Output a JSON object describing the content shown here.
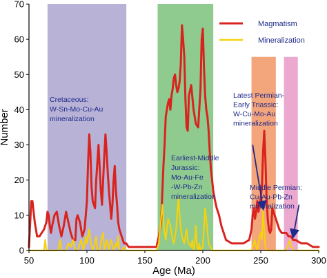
{
  "chart_data": {
    "type": "line",
    "xlabel": "Age (Ma)",
    "ylabel": "Number",
    "xlim": [
      50,
      300
    ],
    "ylim": [
      0,
      70
    ],
    "xticks": [
      50,
      100,
      150,
      200,
      250,
      300
    ],
    "yticks": [
      0,
      10,
      20,
      30,
      40,
      50,
      60,
      70
    ],
    "grid": false,
    "legend_position": "top-right",
    "colors": {
      "magmatism": "#d9231f",
      "mineralization": "#f5d20c",
      "band_cretaceous": "#b8b3d6",
      "band_jurassic": "#8fcb8f",
      "band_permian_triassic": "#f3a57b",
      "band_middle_permian": "#eba9cf",
      "annotation_text": "#1f2a8a"
    },
    "bands": [
      {
        "x": [
          66,
          134
        ],
        "color_key": "band_cretaceous",
        "y_top": 70,
        "label": [
          "Cretaceous:",
          "W-Sn-Mo-Cu-Au",
          "mineralization"
        ]
      },
      {
        "x": [
          161,
          209
        ],
        "color_key": "band_jurassic",
        "y_top": 70,
        "label": [
          "Earliest-Middle",
          "Jurassic:",
          "Mo-Au-Fe",
          "-W-Pb-Zn",
          "mineralization"
        ]
      },
      {
        "x": [
          242,
          263
        ],
        "color_key": "band_permian_triassic",
        "y_top": 55,
        "label": [
          "Latest Permian-",
          "Early Triassic:",
          "W-Cu-Mo-Au",
          "mineralization"
        ]
      },
      {
        "x": [
          270,
          282
        ],
        "color_key": "band_middle_permian",
        "y_top": 55,
        "label": [
          "Middle Permian:",
          "Cu-Au-Pb-Zn",
          "mineralization"
        ]
      }
    ],
    "arrows": [
      {
        "from": [
          243,
          30
        ],
        "to": [
          252,
          12
        ]
      },
      {
        "from": [
          283,
          13
        ],
        "to": [
          278,
          4
        ]
      }
    ],
    "series": [
      {
        "name": "Magmatism",
        "color_key": "magmatism",
        "x": [
          50,
          52,
          53,
          55,
          57,
          59,
          61,
          63,
          65,
          66,
          67,
          68,
          69,
          70,
          72,
          74,
          76,
          78,
          80,
          82,
          84,
          86,
          88,
          90,
          91,
          92,
          94,
          96,
          98,
          100,
          101,
          102,
          103,
          104,
          105,
          106,
          107,
          108,
          110,
          112,
          113,
          114,
          115,
          116,
          117,
          118,
          119,
          120,
          121,
          122,
          123,
          124,
          125,
          126,
          127,
          128,
          130,
          132,
          134,
          136,
          138,
          140,
          145,
          150,
          155,
          160,
          162,
          164,
          166,
          167,
          168,
          169,
          170,
          171,
          172,
          173,
          174,
          175,
          176,
          177,
          178,
          179,
          180,
          181,
          182,
          183,
          184,
          185,
          186,
          187,
          188,
          190,
          192,
          194,
          196,
          198,
          199,
          200,
          201,
          202,
          203,
          204,
          205,
          206,
          207,
          208,
          209,
          210,
          212,
          214,
          216,
          218,
          220,
          225,
          230,
          235,
          240,
          242,
          243,
          244,
          245,
          246,
          247,
          248,
          249,
          250,
          251,
          252,
          253,
          254,
          255,
          256,
          257,
          258,
          259,
          260,
          262,
          264,
          266,
          268,
          270,
          272,
          274,
          276,
          278,
          280,
          285,
          290,
          295,
          300
        ],
        "values": [
          1,
          14,
          14,
          8,
          4,
          4,
          5,
          6,
          8,
          11,
          10,
          7,
          5,
          7,
          10,
          11,
          7,
          4,
          7,
          11,
          8,
          5,
          3,
          3,
          9,
          10,
          8,
          4,
          6,
          14,
          25,
          33,
          28,
          18,
          14,
          13,
          12,
          20,
          30,
          17,
          13,
          20,
          27,
          33,
          28,
          22,
          17,
          13,
          9,
          13,
          20,
          24,
          17,
          13,
          8,
          6,
          4,
          2,
          2,
          1,
          1,
          1,
          1,
          1,
          1,
          1,
          4,
          8,
          24,
          30,
          38,
          40,
          42,
          43,
          40,
          44,
          46,
          49,
          50,
          47,
          45,
          46,
          48,
          53,
          64,
          60,
          55,
          43,
          35,
          34,
          44,
          47,
          40,
          36,
          35,
          46,
          60,
          63,
          52,
          44,
          40,
          38,
          34,
          28,
          23,
          20,
          17,
          15,
          12,
          10,
          7,
          5,
          3,
          2,
          2,
          2,
          3,
          6,
          10,
          12,
          9,
          11,
          14,
          11,
          13,
          15,
          18,
          28,
          34,
          26,
          15,
          9,
          6,
          5,
          6,
          12,
          10,
          8,
          6,
          5,
          5,
          5,
          4,
          4,
          3,
          3,
          2,
          2,
          1,
          1
        ]
      },
      {
        "name": "Mineralization",
        "color_key": "mineralization",
        "x": [
          50,
          60,
          63,
          64,
          65,
          68,
          70,
          75,
          77,
          78,
          80,
          82,
          84,
          86,
          88,
          90,
          92,
          95,
          97,
          99,
          100,
          101,
          102,
          103,
          105,
          107,
          108,
          109,
          111,
          113,
          114,
          115,
          117,
          119,
          120,
          121,
          123,
          125,
          126,
          127,
          128,
          130,
          132,
          134,
          140,
          150,
          160,
          162,
          163,
          164,
          165,
          166,
          167,
          168,
          169,
          170,
          172,
          173,
          174,
          175,
          176,
          177,
          178,
          179,
          180,
          181,
          182,
          183,
          184,
          185,
          186,
          187,
          188,
          190,
          191,
          192,
          193,
          194,
          195,
          196,
          197,
          198,
          200,
          202,
          205,
          208,
          210,
          220,
          230,
          240,
          242,
          243,
          244,
          245,
          246,
          247,
          248,
          249,
          250,
          251,
          252,
          253,
          254,
          255,
          256,
          258,
          260,
          265,
          270,
          272,
          273,
          274,
          275,
          276,
          277,
          278,
          280,
          290,
          300
        ],
        "values": [
          0,
          0,
          0,
          3,
          0,
          0,
          0,
          0,
          3,
          0,
          0,
          0,
          2,
          1,
          3,
          0,
          0,
          3,
          0,
          4,
          2,
          4,
          6,
          3,
          0,
          2,
          4,
          0,
          0,
          4,
          5,
          0,
          3,
          0,
          2,
          3,
          0,
          2,
          1,
          4,
          0,
          0,
          1,
          0,
          0,
          0,
          0,
          2,
          6,
          9,
          13,
          9,
          5,
          3,
          6,
          9,
          7,
          5,
          3,
          2,
          4,
          6,
          11,
          15,
          10,
          6,
          4,
          3,
          2,
          4,
          6,
          3,
          2,
          1,
          3,
          0,
          2,
          7,
          1,
          0,
          2,
          0,
          1,
          12,
          2,
          0,
          0,
          0,
          0,
          0,
          0,
          1,
          2,
          3,
          1,
          0,
          2,
          4,
          5,
          3,
          11,
          6,
          1,
          0,
          0,
          0,
          0,
          0,
          0,
          0,
          1,
          2,
          3,
          1,
          1,
          0,
          0,
          0,
          0
        ]
      }
    ]
  }
}
